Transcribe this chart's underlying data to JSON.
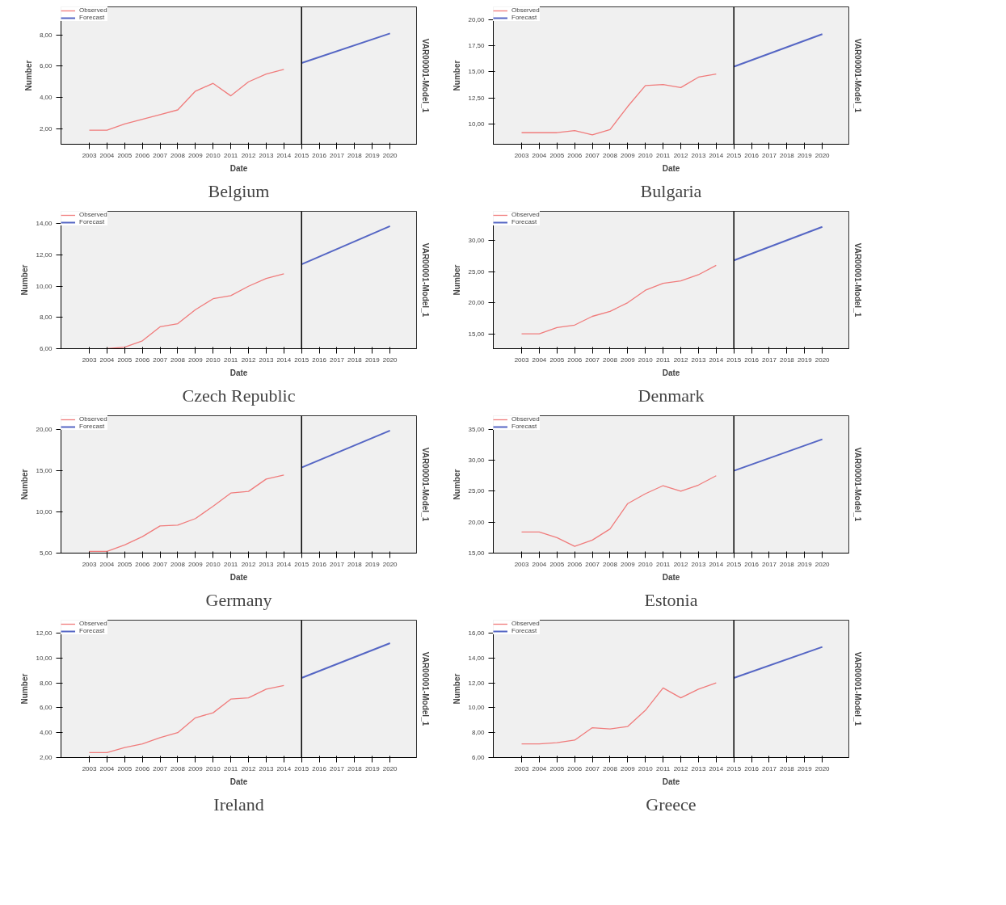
{
  "chart_data": [
    {
      "type": "line",
      "title": "Belgium",
      "xlabel": "Date",
      "ylabel": "Number",
      "y2label": "VAR00001-Model_1",
      "xlim": [
        2001.4,
        2021.5
      ],
      "xticks": [
        2003,
        2004,
        2005,
        2006,
        2007,
        2008,
        2009,
        2010,
        2011,
        2012,
        2013,
        2014,
        2015,
        2016,
        2017,
        2018,
        2019,
        2020
      ],
      "ylim": [
        1.0,
        9.8
      ],
      "yticks": [
        {
          "value": 2,
          "label": "2,00"
        },
        {
          "value": 4,
          "label": "4,00"
        },
        {
          "value": 6,
          "label": "6,00"
        },
        {
          "value": 8,
          "label": "8,00"
        }
      ],
      "grid": false,
      "legend": "top left",
      "ref_lines": [
        {
          "axis": "x",
          "value": 2015,
          "color": "#000000"
        }
      ],
      "series": [
        {
          "name": "Observed",
          "color": "#f07c7c",
          "x": [
            2003,
            2004,
            2005,
            2006,
            2007,
            2008,
            2009,
            2010,
            2011,
            2012,
            2013,
            2014
          ],
          "values": [
            1.9,
            1.9,
            2.3,
            2.6,
            2.9,
            3.2,
            4.4,
            4.9,
            4.1,
            5.0,
            5.5,
            5.8
          ]
        },
        {
          "name": "Forecast",
          "color": "#5566c4",
          "x": [
            2015,
            2020
          ],
          "values": [
            6.2,
            8.1
          ]
        }
      ]
    },
    {
      "type": "line",
      "title": "Bulgaria",
      "xlabel": "Date",
      "ylabel": "Number",
      "y2label": "VAR00001-Model_1",
      "xlim": [
        2001.4,
        2021.5
      ],
      "xticks": [
        2003,
        2004,
        2005,
        2006,
        2007,
        2008,
        2009,
        2010,
        2011,
        2012,
        2013,
        2014,
        2015,
        2016,
        2017,
        2018,
        2019,
        2020
      ],
      "ylim": [
        8.1,
        21.2
      ],
      "yticks": [
        {
          "value": 10,
          "label": "10,00"
        },
        {
          "value": 12.5,
          "label": "12,50"
        },
        {
          "value": 15,
          "label": "15,00"
        },
        {
          "value": 17.5,
          "label": "17,50"
        },
        {
          "value": 20,
          "label": "20,00"
        }
      ],
      "grid": false,
      "legend": "top left",
      "ref_lines": [
        {
          "axis": "x",
          "value": 2015,
          "color": "#000000"
        }
      ],
      "series": [
        {
          "name": "Observed",
          "color": "#f07c7c",
          "x": [
            2003,
            2004,
            2005,
            2006,
            2007,
            2008,
            2009,
            2010,
            2011,
            2012,
            2013,
            2014
          ],
          "values": [
            9.2,
            9.2,
            9.2,
            9.4,
            9.0,
            9.5,
            11.7,
            13.7,
            13.8,
            13.5,
            14.5,
            14.8
          ]
        },
        {
          "name": "Forecast",
          "color": "#5566c4",
          "x": [
            2015,
            2020
          ],
          "values": [
            15.5,
            18.6
          ]
        }
      ]
    },
    {
      "type": "line",
      "title": "Czech Republic",
      "xlabel": "Date",
      "ylabel": "Number",
      "y2label": "VAR00001-Model_1",
      "xlim": [
        2001.4,
        2021.5
      ],
      "xticks": [
        2003,
        2004,
        2005,
        2006,
        2007,
        2008,
        2009,
        2010,
        2011,
        2012,
        2013,
        2014,
        2015,
        2016,
        2017,
        2018,
        2019,
        2020
      ],
      "ylim": [
        6.0,
        14.8
      ],
      "yticks": [
        {
          "value": 6,
          "label": "6,00"
        },
        {
          "value": 8,
          "label": "8,00"
        },
        {
          "value": 10,
          "label": "10,00"
        },
        {
          "value": 12,
          "label": "12,00"
        },
        {
          "value": 14,
          "label": "14,00"
        }
      ],
      "grid": false,
      "legend": "top left",
      "ref_lines": [
        {
          "axis": "x",
          "value": 2015,
          "color": "#000000"
        }
      ],
      "series": [
        {
          "name": "Observed",
          "color": "#f07c7c",
          "x": [
            2004,
            2005,
            2006,
            2007,
            2008,
            2009,
            2010,
            2011,
            2012,
            2013,
            2014
          ],
          "values": [
            6.0,
            6.1,
            6.5,
            7.4,
            7.6,
            8.5,
            9.2,
            9.4,
            10.0,
            10.5,
            10.8
          ]
        },
        {
          "name": "Forecast",
          "color": "#5566c4",
          "x": [
            2015,
            2020
          ],
          "values": [
            11.4,
            13.85
          ]
        }
      ]
    },
    {
      "type": "line",
      "title": "Denmark",
      "xlabel": "Date",
      "ylabel": "Number",
      "y2label": "VAR00001-Model_1",
      "xlim": [
        2001.4,
        2021.5
      ],
      "xticks": [
        2003,
        2004,
        2005,
        2006,
        2007,
        2008,
        2009,
        2010,
        2011,
        2012,
        2013,
        2014,
        2015,
        2016,
        2017,
        2018,
        2019,
        2020
      ],
      "ylim": [
        12.6,
        34.7
      ],
      "yticks": [
        {
          "value": 15,
          "label": "15,00"
        },
        {
          "value": 20,
          "label": "20,00"
        },
        {
          "value": 25,
          "label": "25,00"
        },
        {
          "value": 30,
          "label": "30,00"
        }
      ],
      "grid": false,
      "legend": "top left",
      "ref_lines": [
        {
          "axis": "x",
          "value": 2015,
          "color": "#000000"
        }
      ],
      "series": [
        {
          "name": "Observed",
          "color": "#f07c7c",
          "x": [
            2003,
            2004,
            2005,
            2006,
            2007,
            2008,
            2009,
            2010,
            2011,
            2012,
            2013,
            2014
          ],
          "values": [
            15.0,
            15.0,
            16.0,
            16.4,
            17.8,
            18.6,
            20.0,
            22.0,
            23.1,
            23.5,
            24.5,
            26.0
          ]
        },
        {
          "name": "Forecast",
          "color": "#5566c4",
          "x": [
            2015,
            2020
          ],
          "values": [
            26.8,
            32.2
          ]
        }
      ]
    },
    {
      "type": "line",
      "title": "Germany",
      "xlabel": "Date",
      "ylabel": "Number",
      "y2label": "VAR00001-Model_1",
      "xlim": [
        2001.4,
        2021.5
      ],
      "xticks": [
        2003,
        2004,
        2005,
        2006,
        2007,
        2008,
        2009,
        2010,
        2011,
        2012,
        2013,
        2014,
        2015,
        2016,
        2017,
        2018,
        2019,
        2020
      ],
      "ylim": [
        5.0,
        21.7
      ],
      "yticks": [
        {
          "value": 5,
          "label": "5,00"
        },
        {
          "value": 10,
          "label": "10,00"
        },
        {
          "value": 15,
          "label": "15,00"
        },
        {
          "value": 20,
          "label": "20,00"
        }
      ],
      "grid": false,
      "legend": "top left",
      "ref_lines": [
        {
          "axis": "x",
          "value": 2015,
          "color": "#000000"
        }
      ],
      "series": [
        {
          "name": "Observed",
          "color": "#f07c7c",
          "x": [
            2003,
            2004,
            2005,
            2006,
            2007,
            2008,
            2009,
            2010,
            2011,
            2012,
            2013,
            2014
          ],
          "values": [
            5.2,
            5.2,
            6.0,
            7.0,
            8.3,
            8.4,
            9.2,
            10.7,
            12.3,
            12.5,
            14.0,
            14.5
          ]
        },
        {
          "name": "Forecast",
          "color": "#5566c4",
          "x": [
            2015,
            2020
          ],
          "values": [
            15.4,
            19.9
          ]
        }
      ]
    },
    {
      "type": "line",
      "title": "Estonia",
      "xlabel": "Date",
      "ylabel": "Number",
      "y2label": "VAR00001-Model_1",
      "xlim": [
        2001.4,
        2021.5
      ],
      "xticks": [
        2003,
        2004,
        2005,
        2006,
        2007,
        2008,
        2009,
        2010,
        2011,
        2012,
        2013,
        2014,
        2015,
        2016,
        2017,
        2018,
        2019,
        2020
      ],
      "ylim": [
        15.0,
        37.2
      ],
      "yticks": [
        {
          "value": 15,
          "label": "15,00"
        },
        {
          "value": 20,
          "label": "20,00"
        },
        {
          "value": 25,
          "label": "25,00"
        },
        {
          "value": 30,
          "label": "30,00"
        },
        {
          "value": 35,
          "label": "35,00"
        }
      ],
      "grid": false,
      "legend": "top left",
      "ref_lines": [
        {
          "axis": "x",
          "value": 2015,
          "color": "#000000"
        }
      ],
      "series": [
        {
          "name": "Observed",
          "color": "#f07c7c",
          "x": [
            2003,
            2004,
            2005,
            2006,
            2007,
            2008,
            2009,
            2010,
            2011,
            2012,
            2013,
            2014
          ],
          "values": [
            18.4,
            18.4,
            17.5,
            16.1,
            17.1,
            18.9,
            23.0,
            24.6,
            25.9,
            25.0,
            26.0,
            27.5
          ]
        },
        {
          "name": "Forecast",
          "color": "#5566c4",
          "x": [
            2015,
            2020
          ],
          "values": [
            28.3,
            33.4
          ]
        }
      ]
    },
    {
      "type": "line",
      "title": "Ireland",
      "xlabel": "Date",
      "ylabel": "Number",
      "y2label": "VAR00001-Model_1",
      "xlim": [
        2001.4,
        2021.5
      ],
      "xticks": [
        2003,
        2004,
        2005,
        2006,
        2007,
        2008,
        2009,
        2010,
        2011,
        2012,
        2013,
        2014,
        2015,
        2016,
        2017,
        2018,
        2019,
        2020
      ],
      "ylim": [
        2.0,
        13.05
      ],
      "yticks": [
        {
          "value": 2,
          "label": "2,00"
        },
        {
          "value": 4,
          "label": "4,00"
        },
        {
          "value": 6,
          "label": "6,00"
        },
        {
          "value": 8,
          "label": "8,00"
        },
        {
          "value": 10,
          "label": "10,00"
        },
        {
          "value": 12,
          "label": "12,00"
        }
      ],
      "grid": false,
      "legend": "top left",
      "ref_lines": [
        {
          "axis": "x",
          "value": 2015,
          "color": "#000000"
        }
      ],
      "series": [
        {
          "name": "Observed",
          "color": "#f07c7c",
          "x": [
            2003,
            2004,
            2005,
            2006,
            2007,
            2008,
            2009,
            2010,
            2011,
            2012,
            2013,
            2014
          ],
          "values": [
            2.4,
            2.4,
            2.8,
            3.1,
            3.6,
            4.0,
            5.2,
            5.6,
            6.7,
            6.8,
            7.5,
            7.8
          ]
        },
        {
          "name": "Forecast",
          "color": "#5566c4",
          "x": [
            2015,
            2020
          ],
          "values": [
            8.4,
            11.2
          ]
        }
      ]
    },
    {
      "type": "line",
      "title": "Greece",
      "xlabel": "Date",
      "ylabel": "Number",
      "y2label": "VAR00001-Model_1",
      "xlim": [
        2001.4,
        2021.5
      ],
      "xticks": [
        2003,
        2004,
        2005,
        2006,
        2007,
        2008,
        2009,
        2010,
        2011,
        2012,
        2013,
        2014,
        2015,
        2016,
        2017,
        2018,
        2019,
        2020
      ],
      "ylim": [
        6.0,
        17.05
      ],
      "yticks": [
        {
          "value": 6,
          "label": "6,00"
        },
        {
          "value": 8,
          "label": "8,00"
        },
        {
          "value": 10,
          "label": "10,00"
        },
        {
          "value": 12,
          "label": "12,00"
        },
        {
          "value": 14,
          "label": "14,00"
        },
        {
          "value": 16,
          "label": "16,00"
        }
      ],
      "grid": false,
      "legend": "top left",
      "ref_lines": [
        {
          "axis": "x",
          "value": 2015,
          "color": "#000000"
        }
      ],
      "series": [
        {
          "name": "Observed",
          "color": "#f07c7c",
          "x": [
            2003,
            2004,
            2005,
            2006,
            2007,
            2008,
            2009,
            2010,
            2011,
            2012,
            2013,
            2014
          ],
          "values": [
            7.1,
            7.1,
            7.2,
            7.4,
            8.4,
            8.3,
            8.5,
            9.8,
            11.6,
            10.8,
            11.5,
            12.0
          ]
        },
        {
          "name": "Forecast",
          "color": "#5566c4",
          "x": [
            2015,
            2020
          ],
          "values": [
            12.4,
            14.9
          ]
        }
      ]
    }
  ]
}
